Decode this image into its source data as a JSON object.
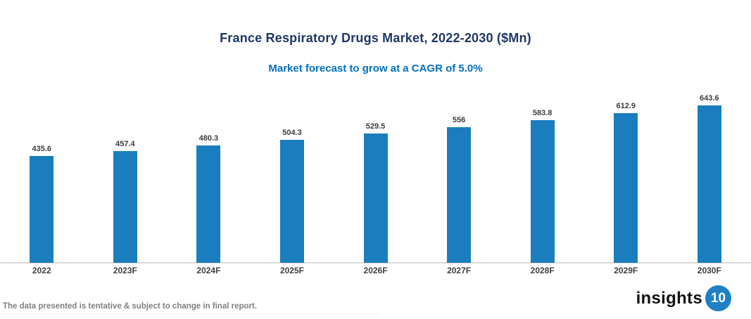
{
  "chart_data": {
    "type": "bar",
    "title": "France Respiratory Drugs Market, 2022-2030 ($Mn)",
    "subtitle": "Market forecast to grow at a CAGR of 5.0%",
    "categories": [
      "2022",
      "2023F",
      "2024F",
      "2025F",
      "2026F",
      "2027F",
      "2028F",
      "2029F",
      "2030F"
    ],
    "values": [
      435.6,
      457.4,
      480.3,
      504.3,
      529.5,
      556,
      583.8,
      612.9,
      643.6
    ],
    "value_labels": [
      "435.6",
      "457.4",
      "480.3",
      "504.3",
      "529.5",
      "556",
      "583.8",
      "612.9",
      "643.6"
    ],
    "xlabel": "",
    "ylabel": "",
    "ylim": [
      0,
      700
    ],
    "grid": false,
    "legend": "none",
    "bar_color": "#1A7DBD"
  },
  "colors": {
    "title": "#1F3864",
    "subtitle": "#0070C0",
    "bar": "#1A7DBD",
    "axis_line": "#D9D9D9",
    "data_label": "#3B3B3B",
    "category_label": "#404040",
    "disclaimer": "#808080",
    "logo_text": "#111111",
    "logo_badge_bg": "#2080C5"
  },
  "footer": {
    "disclaimer": "The data presented is tentative & subject to change in final report.",
    "logo_text": "insights",
    "logo_badge": "10"
  }
}
